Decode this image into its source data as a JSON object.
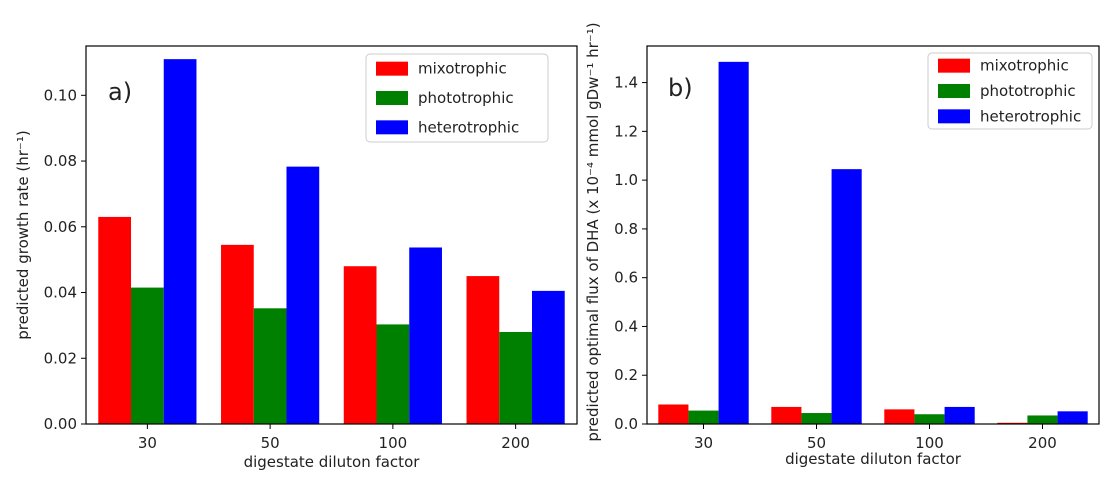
{
  "chart_data": [
    {
      "type": "bar",
      "panel_label": "a)",
      "title": "",
      "xlabel": "digestate diluton factor",
      "ylabel": "predicted growth rate (hr⁻¹)",
      "categories": [
        "30",
        "50",
        "100",
        "200"
      ],
      "ylim": [
        0,
        0.115
      ],
      "yticks": [
        "0.00",
        "0.02",
        "0.04",
        "0.06",
        "0.08",
        "0.10"
      ],
      "series": [
        {
          "name": "mixotrophic",
          "color": "#ff0000",
          "values": [
            0.063,
            0.0545,
            0.048,
            0.045
          ]
        },
        {
          "name": "phototrophic",
          "color": "#008000",
          "values": [
            0.0415,
            0.0352,
            0.0303,
            0.028
          ]
        },
        {
          "name": "heterotrophic",
          "color": "#0000ff",
          "values": [
            0.111,
            0.0783,
            0.0537,
            0.0405
          ]
        }
      ],
      "grid": false,
      "legend": "top-right"
    },
    {
      "type": "bar",
      "panel_label": "b)",
      "title": "",
      "xlabel": "digestate diluton factor",
      "ylabel": "predicted optimal flux of DHA (x 10⁻⁴ mmol gDw⁻¹ hr⁻¹)",
      "categories": [
        "30",
        "50",
        "100",
        "200"
      ],
      "ylim": [
        0,
        1.55
      ],
      "yticks": [
        "0.0",
        "0.2",
        "0.4",
        "0.6",
        "0.8",
        "1.0",
        "1.2",
        "1.4"
      ],
      "series": [
        {
          "name": "mixotrophic",
          "color": "#ff0000",
          "values": [
            0.08,
            0.07,
            0.06,
            0.005
          ]
        },
        {
          "name": "phototrophic",
          "color": "#008000",
          "values": [
            0.055,
            0.045,
            0.04,
            0.035
          ]
        },
        {
          "name": "heterotrophic",
          "color": "#0000ff",
          "values": [
            1.485,
            1.045,
            0.07,
            0.052
          ]
        }
      ],
      "grid": false,
      "legend": "top-right"
    }
  ]
}
